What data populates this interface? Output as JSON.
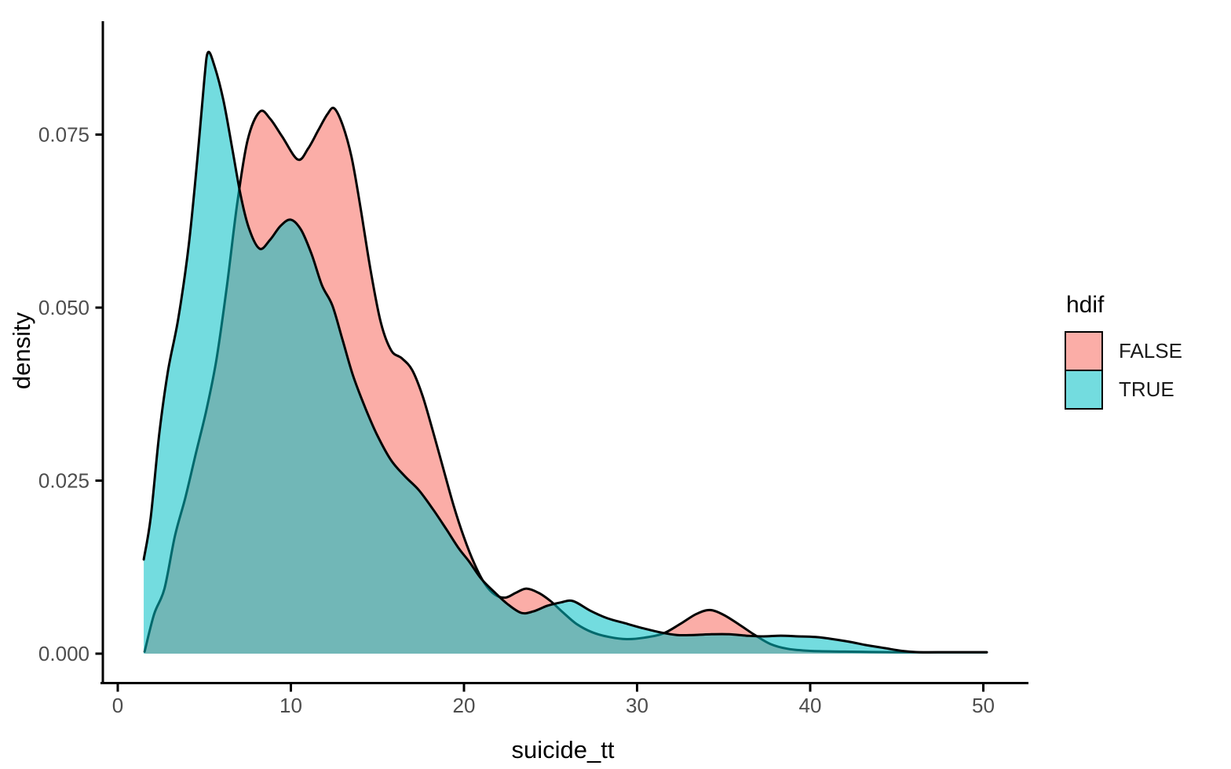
{
  "chart_data": {
    "type": "area",
    "subtype": "density",
    "title": "",
    "xlabel": "suicide_tt",
    "ylabel": "density",
    "xlim": [
      -1,
      52.6
    ],
    "ylim": [
      0,
      0.091
    ],
    "grid": false,
    "x_axis": {
      "ticks": [
        {
          "v": 0,
          "label": "0"
        },
        {
          "v": 10,
          "label": "10"
        },
        {
          "v": 20,
          "label": "20"
        },
        {
          "v": 30,
          "label": "30"
        },
        {
          "v": 40,
          "label": "40"
        },
        {
          "v": 50,
          "label": "50"
        }
      ]
    },
    "y_axis": {
      "ticks": [
        {
          "v": 0.0,
          "label": "0.000"
        },
        {
          "v": 0.025,
          "label": "0.025"
        },
        {
          "v": 0.05,
          "label": "0.050"
        },
        {
          "v": 0.075,
          "label": "0.075"
        }
      ]
    },
    "legend": {
      "title": "hdif",
      "position": "right",
      "entries": [
        {
          "label": "FALSE",
          "fill": "#F8766D",
          "alpha": 0.6
        },
        {
          "label": "TRUE",
          "fill": "#00BFC4",
          "alpha": 0.55
        }
      ]
    },
    "style": {
      "curve_stroke": "#000000",
      "curve_stroke_width": 3,
      "axis_line_color": "#000000",
      "axis_line_width": 3,
      "tick_text_color": "#4D4D4D",
      "background": "#ffffff"
    },
    "series": [
      {
        "name": "FALSE",
        "fill": "#F8766D",
        "fill_alpha": 0.6,
        "points": [
          [
            1.55,
            0.0003
          ],
          [
            2.1,
            0.0057
          ],
          [
            2.7,
            0.0094
          ],
          [
            3.3,
            0.017
          ],
          [
            3.9,
            0.0225
          ],
          [
            4.5,
            0.0288
          ],
          [
            5.1,
            0.035
          ],
          [
            5.7,
            0.0425
          ],
          [
            6.3,
            0.053
          ],
          [
            6.9,
            0.065
          ],
          [
            7.5,
            0.0742
          ],
          [
            8.2,
            0.0783
          ],
          [
            8.8,
            0.0773
          ],
          [
            9.5,
            0.0747
          ],
          [
            10.4,
            0.0714
          ],
          [
            11.0,
            0.073
          ],
          [
            11.6,
            0.0757
          ],
          [
            12.1,
            0.0779
          ],
          [
            12.5,
            0.0788
          ],
          [
            13.0,
            0.0763
          ],
          [
            13.5,
            0.0718
          ],
          [
            14.0,
            0.0648
          ],
          [
            14.6,
            0.0555
          ],
          [
            15.2,
            0.0478
          ],
          [
            15.8,
            0.0438
          ],
          [
            16.4,
            0.0427
          ],
          [
            17.0,
            0.041
          ],
          [
            17.6,
            0.0373
          ],
          [
            18.2,
            0.0322
          ],
          [
            18.8,
            0.0268
          ],
          [
            19.4,
            0.0214
          ],
          [
            20.0,
            0.0168
          ],
          [
            20.6,
            0.013
          ],
          [
            21.2,
            0.0101
          ],
          [
            21.8,
            0.0085
          ],
          [
            22.4,
            0.0081
          ],
          [
            23.0,
            0.0088
          ],
          [
            23.6,
            0.0094
          ],
          [
            24.3,
            0.0088
          ],
          [
            25.0,
            0.0076
          ],
          [
            25.7,
            0.006
          ],
          [
            26.5,
            0.0043
          ],
          [
            27.4,
            0.0031
          ],
          [
            28.4,
            0.0024
          ],
          [
            29.4,
            0.0021
          ],
          [
            30.4,
            0.0023
          ],
          [
            31.5,
            0.0029
          ],
          [
            32.5,
            0.0043
          ],
          [
            33.4,
            0.0057
          ],
          [
            34.2,
            0.0063
          ],
          [
            35.0,
            0.0056
          ],
          [
            35.9,
            0.0042
          ],
          [
            36.8,
            0.0027
          ],
          [
            37.7,
            0.0014
          ],
          [
            38.7,
            0.0007
          ],
          [
            40.0,
            0.0004
          ],
          [
            42.0,
            0.0003
          ],
          [
            45.0,
            0.0002
          ],
          [
            50.2,
            0.0002
          ]
        ]
      },
      {
        "name": "TRUE",
        "fill": "#00BFC4",
        "fill_alpha": 0.55,
        "points": [
          [
            1.5,
            0.0136
          ],
          [
            1.9,
            0.0196
          ],
          [
            2.4,
            0.0318
          ],
          [
            2.9,
            0.0408
          ],
          [
            3.5,
            0.0485
          ],
          [
            4.1,
            0.059
          ],
          [
            4.6,
            0.0715
          ],
          [
            5.0,
            0.083
          ],
          [
            5.22,
            0.0869
          ],
          [
            5.6,
            0.0848
          ],
          [
            6.1,
            0.08
          ],
          [
            6.6,
            0.0732
          ],
          [
            7.1,
            0.0662
          ],
          [
            7.6,
            0.0613
          ],
          [
            8.2,
            0.0585
          ],
          [
            8.8,
            0.0598
          ],
          [
            9.4,
            0.0618
          ],
          [
            10.0,
            0.0627
          ],
          [
            10.6,
            0.0612
          ],
          [
            11.2,
            0.0577
          ],
          [
            11.8,
            0.0532
          ],
          [
            12.4,
            0.0503
          ],
          [
            13.0,
            0.0452
          ],
          [
            13.6,
            0.0401
          ],
          [
            14.3,
            0.0355
          ],
          [
            15.0,
            0.0315
          ],
          [
            15.8,
            0.0279
          ],
          [
            16.6,
            0.0256
          ],
          [
            17.4,
            0.0236
          ],
          [
            18.2,
            0.0209
          ],
          [
            19.0,
            0.0179
          ],
          [
            19.7,
            0.0152
          ],
          [
            20.3,
            0.0133
          ],
          [
            21.0,
            0.0108
          ],
          [
            21.8,
            0.0088
          ],
          [
            22.5,
            0.0072
          ],
          [
            23.3,
            0.0059
          ],
          [
            24.0,
            0.0061
          ],
          [
            24.8,
            0.0069
          ],
          [
            25.6,
            0.0074
          ],
          [
            26.3,
            0.0076
          ],
          [
            27.3,
            0.0062
          ],
          [
            28.3,
            0.0051
          ],
          [
            29.3,
            0.0044
          ],
          [
            30.3,
            0.0037
          ],
          [
            31.3,
            0.0031
          ],
          [
            32.3,
            0.0027
          ],
          [
            33.3,
            0.0027
          ],
          [
            34.3,
            0.0028
          ],
          [
            35.3,
            0.0028
          ],
          [
            36.3,
            0.0026
          ],
          [
            37.3,
            0.0025
          ],
          [
            38.3,
            0.0026
          ],
          [
            39.3,
            0.0025
          ],
          [
            40.3,
            0.0024
          ],
          [
            41.3,
            0.0021
          ],
          [
            42.3,
            0.0017
          ],
          [
            43.3,
            0.0012
          ],
          [
            44.3,
            0.0008
          ],
          [
            45.3,
            0.0004
          ],
          [
            46.3,
            0.0002
          ],
          [
            48.0,
            0.0002
          ],
          [
            50.2,
            0.0002
          ]
        ]
      }
    ]
  }
}
